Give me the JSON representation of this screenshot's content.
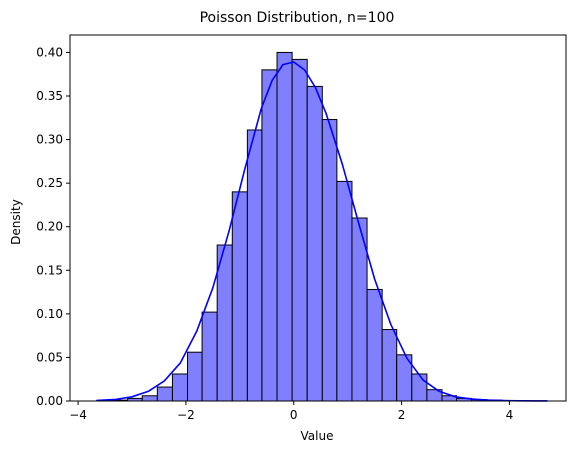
{
  "chart_data": {
    "type": "bar",
    "title": "Poisson Distribution, n=100",
    "xlabel": "Value",
    "ylabel": "Density",
    "xlim": [
      -4.15,
      5.05
    ],
    "ylim": [
      0,
      0.42
    ],
    "x_ticks": [
      -4,
      -2,
      0,
      2,
      4
    ],
    "x_tick_labels": [
      "−4",
      "−2",
      "0",
      "2",
      "4"
    ],
    "y_ticks": [
      0.0,
      0.05,
      0.1,
      0.15,
      0.2,
      0.25,
      0.3,
      0.35,
      0.4
    ],
    "y_tick_labels": [
      "0.00",
      "0.05",
      "0.10",
      "0.15",
      "0.20",
      "0.25",
      "0.30",
      "0.35",
      "0.40"
    ],
    "grid": false,
    "legend": "none",
    "colors": {
      "bar_fill": "#8080ff",
      "bar_edge": "#000000",
      "kde_line": "#0000ff"
    },
    "histogram": {
      "bin_edges": [
        -3.64,
        -3.36,
        -3.08,
        -2.81,
        -2.53,
        -2.25,
        -1.97,
        -1.7,
        -1.42,
        -1.14,
        -0.86,
        -0.59,
        -0.31,
        -0.03,
        0.25,
        0.53,
        0.8,
        1.08,
        1.36,
        1.64,
        1.91,
        2.19,
        2.47,
        2.75,
        3.02,
        3.3,
        3.58,
        3.86,
        4.13,
        4.41,
        4.69
      ],
      "density": [
        0.0005,
        0.001,
        0.003,
        0.006,
        0.016,
        0.031,
        0.056,
        0.102,
        0.179,
        0.24,
        0.311,
        0.38,
        0.4,
        0.392,
        0.361,
        0.323,
        0.252,
        0.21,
        0.128,
        0.082,
        0.053,
        0.031,
        0.013,
        0.006,
        0.003,
        0.0015,
        0.001,
        0.0005,
        0.0003,
        0.0002
      ]
    },
    "kde": {
      "name": "",
      "x": [
        -3.65,
        -3.3,
        -3.0,
        -2.7,
        -2.4,
        -2.1,
        -1.8,
        -1.5,
        -1.2,
        -0.9,
        -0.6,
        -0.4,
        -0.2,
        0.0,
        0.2,
        0.4,
        0.6,
        0.9,
        1.2,
        1.5,
        1.8,
        2.1,
        2.4,
        2.7,
        3.0,
        3.3,
        3.6,
        3.9,
        4.2,
        4.5,
        4.7
      ],
      "y": [
        0.0006,
        0.0018,
        0.0048,
        0.011,
        0.023,
        0.044,
        0.08,
        0.13,
        0.195,
        0.268,
        0.336,
        0.368,
        0.386,
        0.389,
        0.38,
        0.36,
        0.33,
        0.272,
        0.205,
        0.14,
        0.088,
        0.049,
        0.024,
        0.011,
        0.0048,
        0.0022,
        0.0011,
        0.0005,
        0.0002,
        0.0001,
        0.0001
      ]
    }
  }
}
